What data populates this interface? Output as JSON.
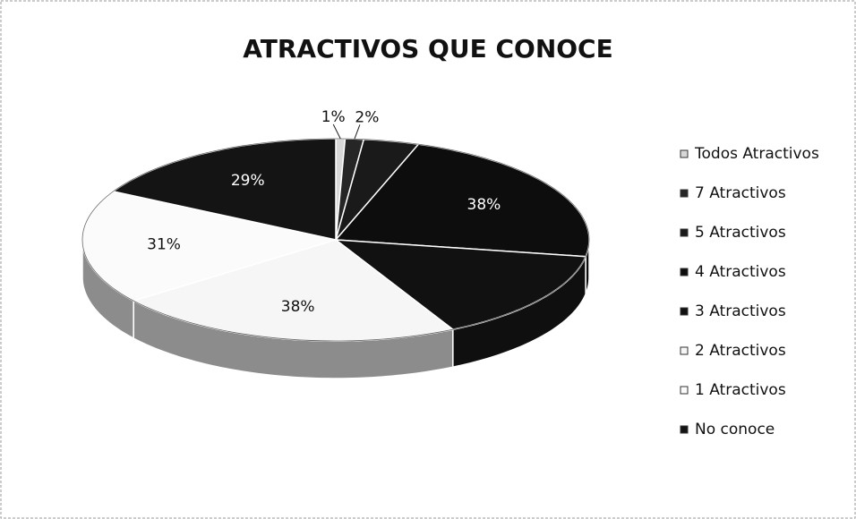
{
  "chart_data": {
    "type": "pie",
    "title": "ATRACTIVOS QUE CONOCE",
    "categories": [
      "Todos Atractivos",
      "7 Atractivos",
      "5 Atractivos",
      "4 Atractivos",
      "3 Atractivos",
      "2 Atractivos",
      "1 Atractivos",
      "No conoce"
    ],
    "values": [
      1,
      2,
      6,
      38,
      25,
      38,
      31,
      29
    ],
    "value_labels": [
      "1%",
      "2%",
      null,
      "38%",
      null,
      "38%",
      "31%",
      "29%"
    ],
    "colors": [
      "#d8d8d8",
      "#262626",
      "#1a1a1a",
      "#0d0d0d",
      "#111111",
      "#f6f6f6",
      "#fbfbfb",
      "#141414"
    ],
    "legend": "right"
  }
}
